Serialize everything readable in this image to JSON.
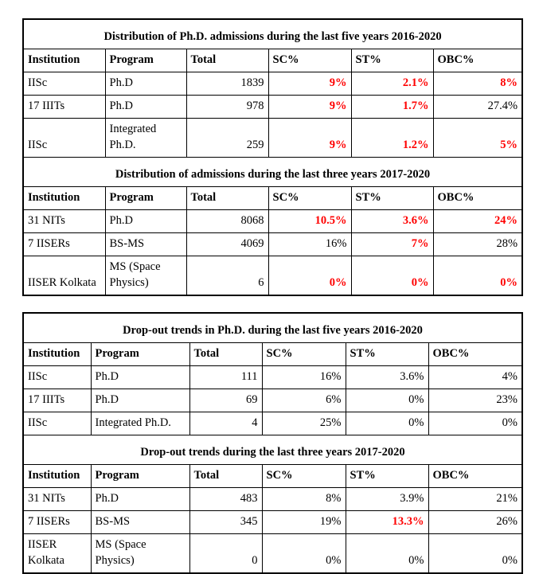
{
  "colors": {
    "highlight_red": "#ff0000",
    "text": "#000000",
    "border": "#000000",
    "background": "#ffffff"
  },
  "tables": [
    {
      "id": "admissions-table",
      "sections": [
        {
          "title": "Distribution of Ph.D. admissions during the last five years 2016-2020",
          "headers": [
            "Institution",
            "Program",
            "Total",
            "SC%",
            "ST%",
            "OBC%"
          ],
          "rows": [
            {
              "cells": [
                "IISc",
                "Ph.D",
                "1839",
                "9%",
                "2.1%",
                "8%"
              ],
              "red": [
                false,
                false,
                false,
                true,
                true,
                true
              ]
            },
            {
              "cells": [
                "17 IIITs",
                "Ph.D",
                "978",
                "9%",
                "1.7%",
                "27.4%"
              ],
              "red": [
                false,
                false,
                false,
                true,
                true,
                false
              ]
            },
            {
              "cells": [
                "IISc",
                "Integrated Ph.D.",
                "259",
                "9%",
                "1.2%",
                "5%"
              ],
              "red": [
                false,
                false,
                false,
                true,
                true,
                true
              ]
            }
          ]
        },
        {
          "title": "Distribution of admissions during the last three years 2017-2020",
          "headers": [
            "Institution",
            "Program",
            "Total",
            "SC%",
            "ST%",
            "OBC%"
          ],
          "rows": [
            {
              "cells": [
                "31 NITs",
                "Ph.D",
                "8068",
                "10.5%",
                "3.6%",
                "24%"
              ],
              "red": [
                false,
                false,
                false,
                true,
                true,
                true
              ]
            },
            {
              "cells": [
                "7 IISERs",
                "BS-MS",
                "4069",
                "16%",
                "7%",
                "28%"
              ],
              "red": [
                false,
                false,
                false,
                false,
                true,
                false
              ]
            },
            {
              "cells": [
                "IISER Kolkata",
                "MS (Space Physics)",
                "6",
                "0%",
                "0%",
                "0%"
              ],
              "red": [
                false,
                false,
                false,
                true,
                true,
                true
              ]
            }
          ]
        }
      ]
    },
    {
      "id": "dropout-table",
      "sections": [
        {
          "title": "Drop-out trends in Ph.D. during the last five years 2016-2020",
          "headers": [
            "Institution",
            "Program",
            "Total",
            "SC%",
            "ST%",
            "OBC%"
          ],
          "rows": [
            {
              "cells": [
                "IISc",
                "Ph.D",
                "111",
                "16%",
                "3.6%",
                "4%"
              ],
              "red": [
                false,
                false,
                false,
                false,
                false,
                false
              ]
            },
            {
              "cells": [
                "17 IIITs",
                "Ph.D",
                "69",
                "6%",
                "0%",
                "23%"
              ],
              "red": [
                false,
                false,
                false,
                false,
                false,
                false
              ]
            },
            {
              "cells": [
                "IISc",
                "Integrated Ph.D.",
                "4",
                "25%",
                "0%",
                "0%"
              ],
              "red": [
                false,
                false,
                false,
                false,
                false,
                false
              ]
            }
          ]
        },
        {
          "title": "Drop-out trends during the last three years 2017-2020",
          "headers": [
            "Institution",
            "Program",
            "Total",
            "SC%",
            "ST%",
            "OBC%"
          ],
          "rows": [
            {
              "cells": [
                "31 NITs",
                "Ph.D",
                "483",
                "8%",
                "3.9%",
                "21%"
              ],
              "red": [
                false,
                false,
                false,
                false,
                false,
                false
              ]
            },
            {
              "cells": [
                "7 IISERs",
                "BS-MS",
                "345",
                "19%",
                "13.3%",
                "26%"
              ],
              "red": [
                false,
                false,
                false,
                false,
                true,
                false
              ]
            },
            {
              "cells": [
                "IISER Kolkata",
                "MS (Space Physics)",
                "0",
                "0%",
                "0%",
                "0%"
              ],
              "red": [
                false,
                false,
                false,
                false,
                false,
                false
              ]
            }
          ]
        }
      ]
    }
  ]
}
